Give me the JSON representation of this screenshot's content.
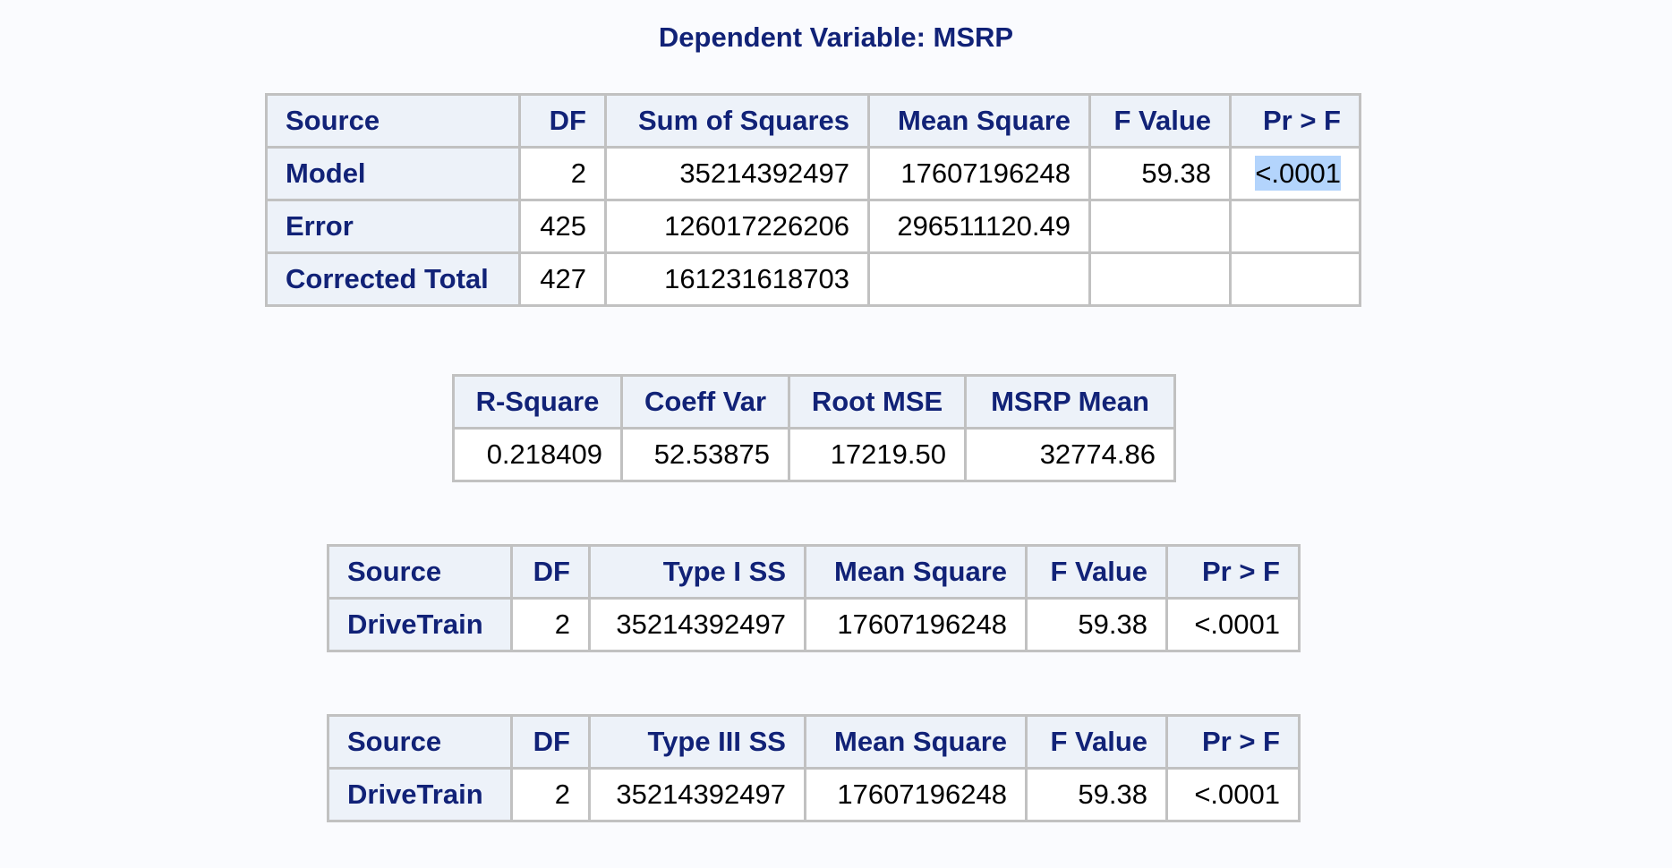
{
  "title": "Dependent Variable: MSRP",
  "anova": {
    "headers": [
      "Source",
      "DF",
      "Sum of Squares",
      "Mean Square",
      "F Value",
      "Pr > F"
    ],
    "rows": [
      {
        "source": "Model",
        "df": "2",
        "ss": "35214392497",
        "ms": "17607196248",
        "f": "59.38",
        "p": "<.0001"
      },
      {
        "source": "Error",
        "df": "425",
        "ss": "126017226206",
        "ms": "296511120.49",
        "f": "",
        "p": ""
      },
      {
        "source": "Corrected Total",
        "df": "427",
        "ss": "161231618703",
        "ms": "",
        "f": "",
        "p": ""
      }
    ]
  },
  "fit": {
    "headers": [
      "R-Square",
      "Coeff Var",
      "Root MSE",
      "MSRP Mean"
    ],
    "values": [
      "0.218409",
      "52.53875",
      "17219.50",
      "32774.86"
    ]
  },
  "type1": {
    "headers": [
      "Source",
      "DF",
      "Type I SS",
      "Mean Square",
      "F Value",
      "Pr > F"
    ],
    "row": {
      "source": "DriveTrain",
      "df": "2",
      "ss": "35214392497",
      "ms": "17607196248",
      "f": "59.38",
      "p": "<.0001"
    }
  },
  "type3": {
    "headers": [
      "Source",
      "DF",
      "Type III SS",
      "Mean Square",
      "F Value",
      "Pr > F"
    ],
    "row": {
      "source": "DriveTrain",
      "df": "2",
      "ss": "35214392497",
      "ms": "17607196248",
      "f": "59.38",
      "p": "<.0001"
    }
  }
}
